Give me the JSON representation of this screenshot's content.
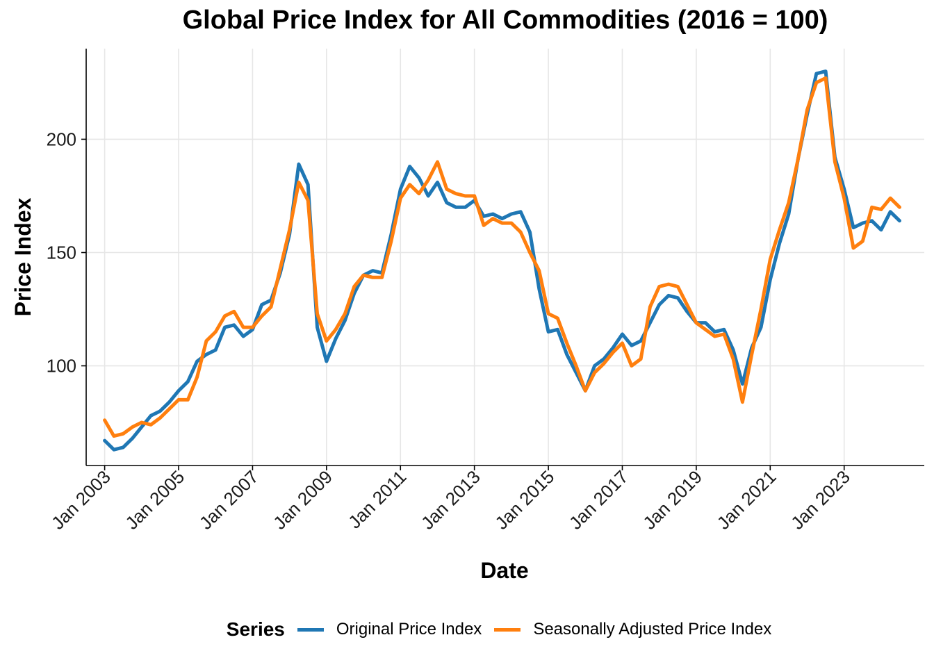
{
  "chart_data": {
    "type": "line",
    "title": "Global Price Index for All Commodities (2016 = 100)",
    "xlabel": "Date",
    "ylabel": "Price Index",
    "x_tick_labels": [
      "Jan 2003",
      "Jan 2005",
      "Jan 2007",
      "Jan 2009",
      "Jan 2011",
      "Jan 2013",
      "Jan 2015",
      "Jan 2017",
      "Jan 2019",
      "Jan 2021",
      "Jan 2023"
    ],
    "y_ticks": [
      100,
      150,
      200
    ],
    "ylim": [
      56,
      240
    ],
    "xlim": [
      "2002-07-01",
      "2025-03-01"
    ],
    "grid": true,
    "legend_position": "bottom",
    "legend_title": "Series",
    "x": [
      "2003-01",
      "2003-04",
      "2003-07",
      "2003-10",
      "2004-01",
      "2004-04",
      "2004-07",
      "2004-10",
      "2005-01",
      "2005-04",
      "2005-07",
      "2005-10",
      "2006-01",
      "2006-04",
      "2006-07",
      "2006-10",
      "2007-01",
      "2007-04",
      "2007-07",
      "2007-10",
      "2008-01",
      "2008-04",
      "2008-07",
      "2008-10",
      "2009-01",
      "2009-04",
      "2009-07",
      "2009-10",
      "2010-01",
      "2010-04",
      "2010-07",
      "2010-10",
      "2011-01",
      "2011-04",
      "2011-07",
      "2011-10",
      "2012-01",
      "2012-04",
      "2012-07",
      "2012-10",
      "2013-01",
      "2013-04",
      "2013-07",
      "2013-10",
      "2014-01",
      "2014-04",
      "2014-07",
      "2014-10",
      "2015-01",
      "2015-04",
      "2015-07",
      "2015-10",
      "2016-01",
      "2016-04",
      "2016-07",
      "2016-10",
      "2017-01",
      "2017-04",
      "2017-07",
      "2017-10",
      "2018-01",
      "2018-04",
      "2018-07",
      "2018-10",
      "2019-01",
      "2019-04",
      "2019-07",
      "2019-10",
      "2020-01",
      "2020-04",
      "2020-07",
      "2020-10",
      "2021-01",
      "2021-04",
      "2021-07",
      "2021-10",
      "2022-01",
      "2022-04",
      "2022-07",
      "2022-10",
      "2023-01",
      "2023-04",
      "2023-07",
      "2023-10",
      "2024-01",
      "2024-04",
      "2024-07"
    ],
    "series": [
      {
        "name": "Original Price Index",
        "color": "#1f77b4",
        "values": [
          67,
          63,
          64,
          68,
          73,
          78,
          80,
          84,
          89,
          93,
          102,
          105,
          107,
          117,
          118,
          113,
          116,
          127,
          129,
          141,
          158,
          189,
          180,
          117,
          102,
          112,
          120,
          132,
          140,
          142,
          141,
          158,
          178,
          188,
          183,
          175,
          181,
          172,
          170,
          170,
          173,
          166,
          167,
          165,
          167,
          168,
          159,
          134,
          115,
          116,
          105,
          97,
          89,
          100,
          103,
          108,
          114,
          109,
          111,
          119,
          127,
          131,
          130,
          124,
          119,
          119,
          115,
          116,
          107,
          92,
          108,
          117,
          138,
          154,
          167,
          191,
          211,
          229,
          230,
          192,
          178,
          161,
          163,
          164,
          160,
          168,
          164
        ]
      },
      {
        "name": "Seasonally Adjusted Price Index",
        "color": "#ff7f0e",
        "values": [
          76,
          69,
          70,
          73,
          75,
          74,
          77,
          81,
          85,
          85,
          95,
          111,
          115,
          122,
          124,
          117,
          117,
          122,
          126,
          143,
          160,
          181,
          173,
          123,
          111,
          116,
          123,
          135,
          140,
          139,
          139,
          155,
          174,
          180,
          176,
          182,
          190,
          178,
          176,
          175,
          175,
          162,
          165,
          163,
          163,
          159,
          150,
          142,
          123,
          121,
          110,
          100,
          89,
          97,
          101,
          106,
          110,
          100,
          103,
          126,
          135,
          136,
          135,
          127,
          119,
          116,
          113,
          114,
          103,
          84,
          105,
          125,
          147,
          160,
          172,
          191,
          213,
          225,
          227,
          190,
          174,
          152,
          155,
          170,
          169,
          174,
          170
        ]
      }
    ]
  }
}
